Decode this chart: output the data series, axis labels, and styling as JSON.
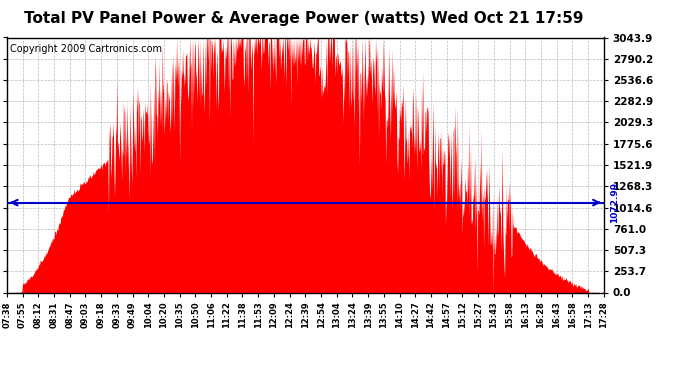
{
  "title": "Total PV Panel Power & Average Power (watts) Wed Oct 21 17:59",
  "copyright": "Copyright 2009 Cartronics.com",
  "average_power": 1072.99,
  "ymax": 3043.9,
  "yticks": [
    0.0,
    253.7,
    507.3,
    761.0,
    1014.6,
    1268.3,
    1521.9,
    1775.6,
    2029.3,
    2282.9,
    2536.6,
    2790.2,
    3043.9
  ],
  "xtick_labels": [
    "07:38",
    "07:55",
    "08:12",
    "08:31",
    "08:47",
    "09:03",
    "09:18",
    "09:33",
    "09:49",
    "10:04",
    "10:20",
    "10:35",
    "10:50",
    "11:06",
    "11:22",
    "11:38",
    "11:53",
    "12:09",
    "12:24",
    "12:39",
    "12:54",
    "13:04",
    "13:24",
    "13:39",
    "13:55",
    "14:10",
    "14:27",
    "14:42",
    "14:57",
    "15:12",
    "15:27",
    "15:43",
    "15:58",
    "16:13",
    "16:28",
    "16:43",
    "16:58",
    "17:13",
    "17:28"
  ],
  "bar_color": "#FF0000",
  "avg_line_color": "#0000CC",
  "background_color": "#FFFFFF",
  "grid_color": "#AAAAAA",
  "title_fontsize": 11,
  "copyright_fontsize": 7
}
